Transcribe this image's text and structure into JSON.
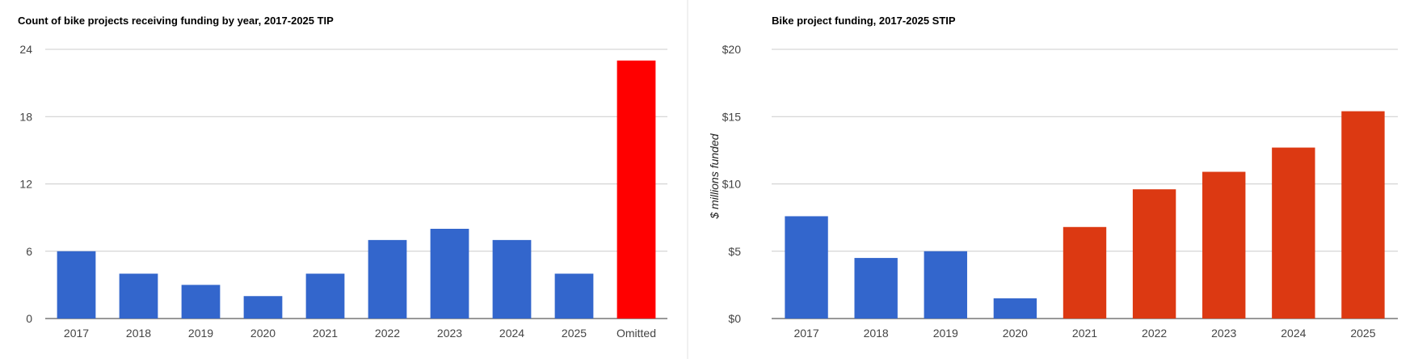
{
  "chart_data": [
    {
      "type": "bar",
      "title": "Count of bike projects receiving funding by year, 2017-2025 TIP",
      "xlabel": "",
      "ylabel": "",
      "categories": [
        "2017",
        "2018",
        "2019",
        "2020",
        "2021",
        "2022",
        "2023",
        "2024",
        "2025",
        "Omitted"
      ],
      "values": [
        6,
        4,
        3,
        2,
        4,
        7,
        8,
        7,
        4,
        23
      ],
      "bar_colors": [
        "#3366cc",
        "#3366cc",
        "#3366cc",
        "#3366cc",
        "#3366cc",
        "#3366cc",
        "#3366cc",
        "#3366cc",
        "#3366cc",
        "#ff0000"
      ],
      "ylim": [
        0,
        24
      ],
      "yticks": [
        0,
        6,
        12,
        18,
        24
      ],
      "ytick_labels": [
        "0",
        "6",
        "12",
        "18",
        "24"
      ],
      "grid": true,
      "legend": "none"
    },
    {
      "type": "bar",
      "title": "Bike project funding, 2017-2025 STIP",
      "xlabel": "",
      "ylabel": "$ millions funded",
      "categories": [
        "2017",
        "2018",
        "2019",
        "2020",
        "2021",
        "2022",
        "2023",
        "2024",
        "2025"
      ],
      "values": [
        7.6,
        4.5,
        5.0,
        1.5,
        6.8,
        9.6,
        10.9,
        12.7,
        15.4
      ],
      "bar_colors": [
        "#3366cc",
        "#3366cc",
        "#3366cc",
        "#3366cc",
        "#dc3912",
        "#dc3912",
        "#dc3912",
        "#dc3912",
        "#dc3912"
      ],
      "ylim": [
        0,
        20
      ],
      "yticks": [
        0,
        5,
        10,
        15,
        20
      ],
      "ytick_labels": [
        "$0",
        "$5",
        "$10",
        "$15",
        "$20"
      ],
      "grid": true,
      "legend": "none"
    }
  ]
}
